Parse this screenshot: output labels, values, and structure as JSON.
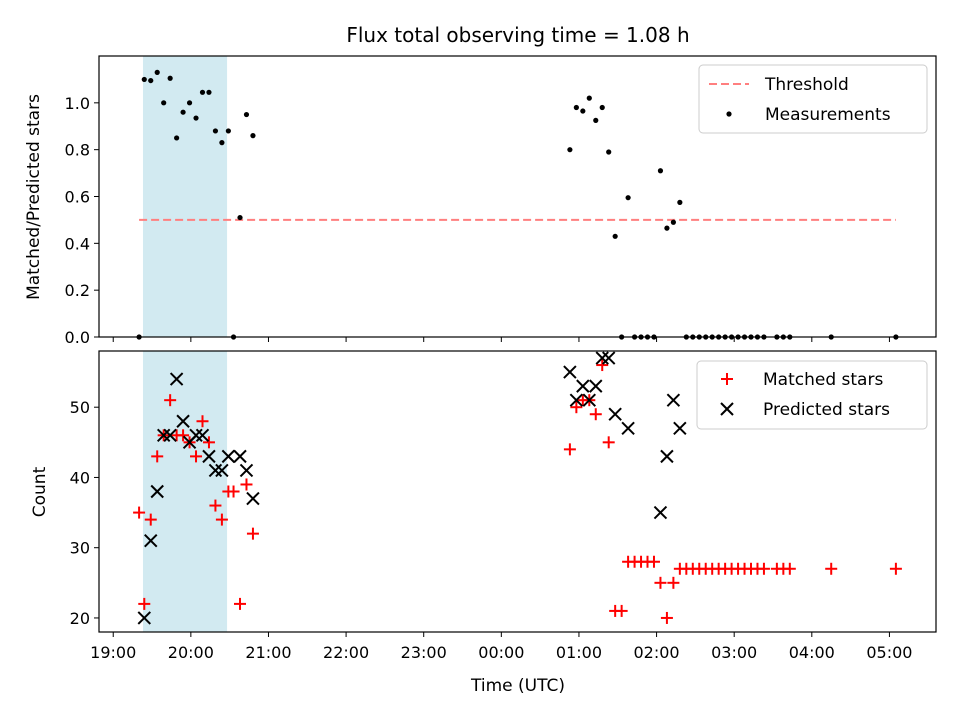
{
  "title": "Flux total observing time = 1.08 h",
  "colors": {
    "threshold": "#ff7f7f",
    "measurements": "#000000",
    "matched": "#ff0000",
    "predicted": "#000000",
    "shade": "#add8e6"
  },
  "chart_data": [
    {
      "type": "scatter",
      "panel": "top",
      "ylabel": "Matched/Predicted stars",
      "xlim": [
        "18:49",
        "05:36"
      ],
      "ylim": [
        0,
        1.2
      ],
      "yticks": [
        "0.0",
        "0.2",
        "0.4",
        "0.6",
        "0.8",
        "1.0"
      ],
      "shaded_region": [
        "19:23",
        "20:28"
      ],
      "legend_position": "upper right",
      "threshold": {
        "name": "Threshold",
        "y": 0.5,
        "x_range": [
          "19:20",
          "05:05"
        ]
      },
      "measurements": {
        "name": "Measurements",
        "points": [
          [
            "19:20",
            0.0
          ],
          [
            "19:24",
            1.1
          ],
          [
            "19:29",
            1.095
          ],
          [
            "19:34",
            1.13
          ],
          [
            "19:39",
            1.0
          ],
          [
            "19:44",
            1.105
          ],
          [
            "19:49",
            0.85
          ],
          [
            "19:54",
            0.96
          ],
          [
            "19:59",
            1.0
          ],
          [
            "20:04",
            0.935
          ],
          [
            "20:09",
            1.045
          ],
          [
            "20:14",
            1.045
          ],
          [
            "20:19",
            0.88
          ],
          [
            "20:24",
            0.83
          ],
          [
            "20:29",
            0.88
          ],
          [
            "20:33",
            0.0
          ],
          [
            "20:38",
            0.51
          ],
          [
            "20:43",
            0.95
          ],
          [
            "20:48",
            0.86
          ],
          [
            "00:53",
            0.8
          ],
          [
            "00:58",
            0.98
          ],
          [
            "01:03",
            0.965
          ],
          [
            "01:08",
            1.02
          ],
          [
            "01:13",
            0.925
          ],
          [
            "01:18",
            0.98
          ],
          [
            "01:23",
            0.79
          ],
          [
            "01:28",
            0.43
          ],
          [
            "01:33",
            0.0
          ],
          [
            "01:38",
            0.595
          ],
          [
            "01:43",
            0.0
          ],
          [
            "01:48",
            0.0
          ],
          [
            "01:53",
            0.0
          ],
          [
            "01:58",
            0.0
          ],
          [
            "02:03",
            0.71
          ],
          [
            "02:08",
            0.465
          ],
          [
            "02:13",
            0.49
          ],
          [
            "02:18",
            0.575
          ],
          [
            "02:23",
            0.0
          ],
          [
            "02:28",
            0.0
          ],
          [
            "02:33",
            0.0
          ],
          [
            "02:38",
            0.0
          ],
          [
            "02:43",
            0.0
          ],
          [
            "02:48",
            0.0
          ],
          [
            "02:53",
            0.0
          ],
          [
            "02:58",
            0.0
          ],
          [
            "03:03",
            0.0
          ],
          [
            "03:08",
            0.0
          ],
          [
            "03:13",
            0.0
          ],
          [
            "03:18",
            0.0
          ],
          [
            "03:23",
            0.0
          ],
          [
            "03:33",
            0.0
          ],
          [
            "03:38",
            0.0
          ],
          [
            "03:43",
            0.0
          ],
          [
            "04:15",
            0.0
          ],
          [
            "05:05",
            0.0
          ]
        ]
      }
    },
    {
      "type": "scatter",
      "panel": "bottom",
      "xlabel": "Time (UTC)",
      "ylabel": "Count",
      "xlim": [
        "18:49",
        "05:36"
      ],
      "ylim": [
        18,
        58
      ],
      "xticks": [
        "19:00",
        "20:00",
        "21:00",
        "22:00",
        "23:00",
        "00:00",
        "01:00",
        "02:00",
        "03:00",
        "04:00",
        "05:00"
      ],
      "yticks": [
        "20",
        "30",
        "40",
        "50"
      ],
      "shaded_region": [
        "19:23",
        "20:28"
      ],
      "legend_position": "upper right",
      "series": [
        {
          "name": "Matched stars",
          "marker": "+",
          "points": [
            [
              "19:20",
              35
            ],
            [
              "19:24",
              22
            ],
            [
              "19:29",
              34
            ],
            [
              "19:34",
              43
            ],
            [
              "19:39",
              46
            ],
            [
              "19:44",
              51
            ],
            [
              "19:49",
              46
            ],
            [
              "19:54",
              46
            ],
            [
              "19:59",
              45
            ],
            [
              "20:04",
              43
            ],
            [
              "20:09",
              48
            ],
            [
              "20:14",
              45
            ],
            [
              "20:19",
              36
            ],
            [
              "20:24",
              34
            ],
            [
              "20:29",
              38
            ],
            [
              "20:33",
              38
            ],
            [
              "20:38",
              22
            ],
            [
              "20:43",
              39
            ],
            [
              "20:48",
              32
            ],
            [
              "00:53",
              44
            ],
            [
              "00:58",
              50
            ],
            [
              "01:03",
              51
            ],
            [
              "01:08",
              51
            ],
            [
              "01:13",
              49
            ],
            [
              "01:18",
              56
            ],
            [
              "01:23",
              45
            ],
            [
              "01:28",
              21
            ],
            [
              "01:33",
              21
            ],
            [
              "01:38",
              28
            ],
            [
              "01:43",
              28
            ],
            [
              "01:48",
              28
            ],
            [
              "01:53",
              28
            ],
            [
              "01:58",
              28
            ],
            [
              "02:03",
              25
            ],
            [
              "02:08",
              20
            ],
            [
              "02:13",
              25
            ],
            [
              "02:18",
              27
            ],
            [
              "02:23",
              27
            ],
            [
              "02:28",
              27
            ],
            [
              "02:33",
              27
            ],
            [
              "02:38",
              27
            ],
            [
              "02:43",
              27
            ],
            [
              "02:48",
              27
            ],
            [
              "02:53",
              27
            ],
            [
              "02:58",
              27
            ],
            [
              "03:03",
              27
            ],
            [
              "03:08",
              27
            ],
            [
              "03:13",
              27
            ],
            [
              "03:18",
              27
            ],
            [
              "03:23",
              27
            ],
            [
              "03:33",
              27
            ],
            [
              "03:38",
              27
            ],
            [
              "03:43",
              27
            ],
            [
              "04:15",
              27
            ],
            [
              "05:05",
              27
            ]
          ]
        },
        {
          "name": "Predicted stars",
          "marker": "x",
          "points": [
            [
              "19:24",
              20
            ],
            [
              "19:29",
              31
            ],
            [
              "19:34",
              38
            ],
            [
              "19:39",
              46
            ],
            [
              "19:44",
              46
            ],
            [
              "19:49",
              54
            ],
            [
              "19:54",
              48
            ],
            [
              "19:59",
              45
            ],
            [
              "20:04",
              46
            ],
            [
              "20:09",
              46
            ],
            [
              "20:14",
              43
            ],
            [
              "20:19",
              41
            ],
            [
              "20:24",
              41
            ],
            [
              "20:29",
              43
            ],
            [
              "20:38",
              43
            ],
            [
              "20:43",
              41
            ],
            [
              "20:48",
              37
            ],
            [
              "00:53",
              55
            ],
            [
              "00:58",
              51
            ],
            [
              "01:03",
              53
            ],
            [
              "01:08",
              51
            ],
            [
              "01:13",
              53
            ],
            [
              "01:18",
              57
            ],
            [
              "01:23",
              57
            ],
            [
              "01:28",
              49
            ],
            [
              "01:38",
              47
            ],
            [
              "02:03",
              35
            ],
            [
              "02:08",
              43
            ],
            [
              "02:13",
              51
            ],
            [
              "02:18",
              47
            ]
          ]
        }
      ]
    }
  ]
}
